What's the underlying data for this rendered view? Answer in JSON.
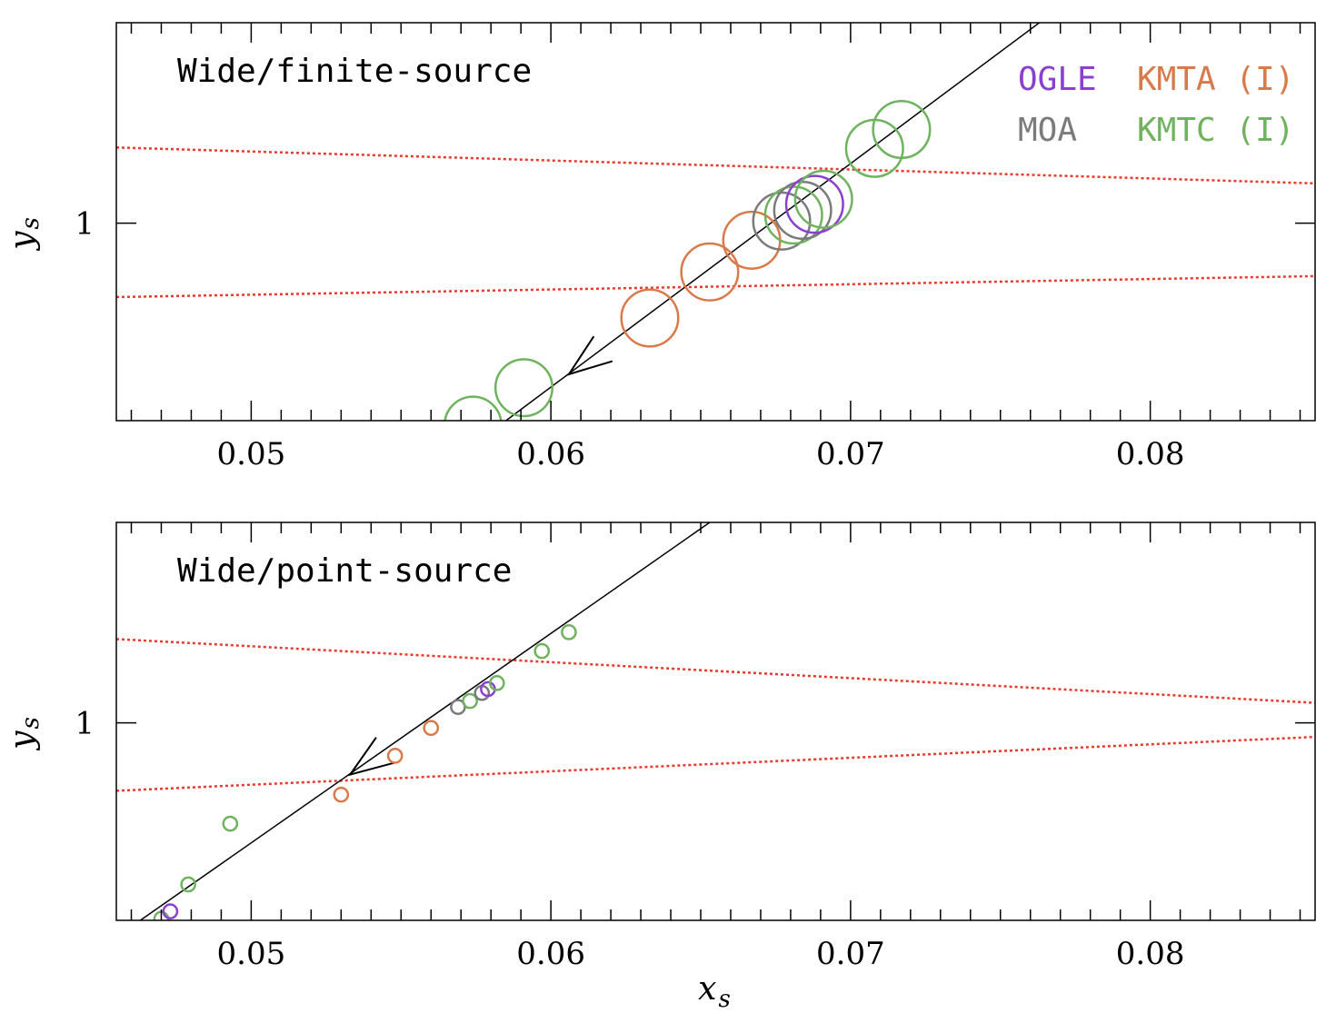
{
  "colors": {
    "OGLE": "#8a3fd1",
    "KMTA (I)": "#d97a4a",
    "MOA": "#7b7b7b",
    "KMTC (I)": "#6fb35f",
    "caustic": "#e8392a",
    "trajectory": "#000000"
  },
  "legend": [
    {
      "label": "OGLE",
      "color_key": "OGLE"
    },
    {
      "label": "KMTA (I)",
      "color_key": "KMTA (I)"
    },
    {
      "label": "MOA",
      "color_key": "MOA"
    },
    {
      "label": "KMTC (I)",
      "color_key": "KMTC (I)"
    }
  ],
  "chart_data": [
    {
      "type": "scatter",
      "title": "Wide/finite-source",
      "xlabel": "",
      "ylabel": "y",
      "ylabel_sub": "s",
      "xlim": [
        0.0455,
        0.0855
      ],
      "ylim": [
        0.9934,
        1.0067
      ],
      "xticks": [
        0.05,
        0.06,
        0.07,
        0.08
      ],
      "xtick_labels": [
        "0.05",
        "0.06",
        "0.07",
        "0.08"
      ],
      "yticks": [
        1.0
      ],
      "ytick_labels": [
        "1"
      ],
      "legend_position": "top-right",
      "trajectory": {
        "x": [
          0.0585,
          0.0763
        ],
        "y": [
          0.9934,
          1.0067
        ]
      },
      "arrow": {
        "x": 0.0606,
        "y": 0.99495
      },
      "source_radius": 0.00095,
      "caustic_lines": [
        {
          "x": [
            0.0455,
            0.0855
          ],
          "y": [
            1.00253,
            1.00133
          ]
        },
        {
          "x": [
            0.0455,
            0.0855
          ],
          "y": [
            0.99753,
            0.99823
          ]
        }
      ],
      "points": [
        {
          "series": "KMTC (I)",
          "x": 0.0574,
          "y": 0.99325
        },
        {
          "series": "KMTC (I)",
          "x": 0.0591,
          "y": 0.9945
        },
        {
          "series": "KMTA (I)",
          "x": 0.0633,
          "y": 0.99683
        },
        {
          "series": "KMTA (I)",
          "x": 0.0653,
          "y": 0.99837
        },
        {
          "series": "KMTA (I)",
          "x": 0.0667,
          "y": 0.99943
        },
        {
          "series": "MOA",
          "x": 0.0677,
          "y": 1.00007
        },
        {
          "series": "KMTC (I)",
          "x": 0.0681,
          "y": 1.00027
        },
        {
          "series": "MOA",
          "x": 0.0684,
          "y": 1.00043
        },
        {
          "series": "OGLE",
          "x": 0.0688,
          "y": 1.00063
        },
        {
          "series": "KMTC (I)",
          "x": 0.0691,
          "y": 1.0008
        },
        {
          "series": "KMTC (I)",
          "x": 0.0708,
          "y": 1.0025
        },
        {
          "series": "KMTC (I)",
          "x": 0.0717,
          "y": 1.00313
        }
      ]
    },
    {
      "type": "scatter",
      "title": "Wide/point-source",
      "xlabel": "x",
      "xlabel_sub": "s",
      "ylabel": "y",
      "ylabel_sub": "s",
      "xlim": [
        0.0455,
        0.0855
      ],
      "ylim": [
        0.9934,
        1.0067
      ],
      "xticks": [
        0.05,
        0.06,
        0.07,
        0.08
      ],
      "xtick_labels": [
        "0.05",
        "0.06",
        "0.07",
        "0.08"
      ],
      "yticks": [
        1.0
      ],
      "ytick_labels": [
        "1"
      ],
      "trajectory": {
        "x": [
          0.0463,
          0.0653
        ],
        "y": [
          0.9934,
          1.0067
        ]
      },
      "arrow": {
        "x": 0.0533,
        "y": 0.99827
      },
      "source_radius": 0.00023,
      "caustic_lines": [
        {
          "x": [
            0.0455,
            0.0855
          ],
          "y": [
            1.0028,
            1.00067
          ]
        },
        {
          "x": [
            0.0455,
            0.0855
          ],
          "y": [
            0.99773,
            0.99953
          ]
        }
      ],
      "points": [
        {
          "series": "KMTC (I)",
          "x": 0.047,
          "y": 0.99345
        },
        {
          "series": "OGLE",
          "x": 0.0473,
          "y": 0.9937
        },
        {
          "series": "KMTC (I)",
          "x": 0.0479,
          "y": 0.9946
        },
        {
          "series": "KMTC (I)",
          "x": 0.0493,
          "y": 0.99663
        },
        {
          "series": "KMTA (I)",
          "x": 0.053,
          "y": 0.9976
        },
        {
          "series": "KMTA (I)",
          "x": 0.0548,
          "y": 0.9989
        },
        {
          "series": "KMTA (I)",
          "x": 0.056,
          "y": 0.99983
        },
        {
          "series": "MOA",
          "x": 0.0569,
          "y": 1.00053
        },
        {
          "series": "KMTC (I)",
          "x": 0.0573,
          "y": 1.00073
        },
        {
          "series": "MOA",
          "x": 0.0577,
          "y": 1.001
        },
        {
          "series": "OGLE",
          "x": 0.0579,
          "y": 1.00113
        },
        {
          "series": "KMTC (I)",
          "x": 0.0582,
          "y": 1.00133
        },
        {
          "series": "KMTC (I)",
          "x": 0.0597,
          "y": 1.0024
        },
        {
          "series": "KMTC (I)",
          "x": 0.0606,
          "y": 1.00303
        }
      ]
    }
  ]
}
